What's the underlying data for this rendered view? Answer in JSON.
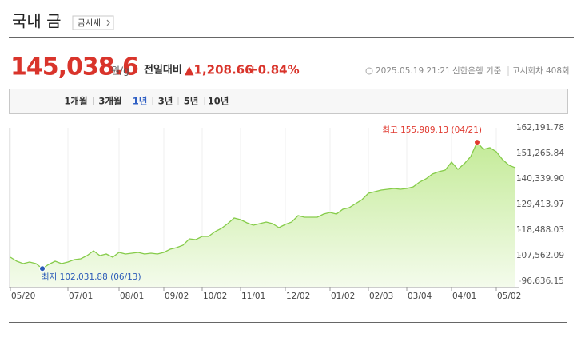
{
  "header": {
    "title": "국내 금",
    "button": "금시세"
  },
  "quote": {
    "price": "145,038.6",
    "unit": "원/g",
    "change_label": "전일대비",
    "change": "▲1,208.66",
    "change_pct": "+0.84%",
    "timestamp": "2025.05.19 21:21",
    "source": "신한은행 기준",
    "round": "고시회차 408회"
  },
  "tabs": [
    "1개월",
    "3개월",
    "1년",
    "3년",
    "5년",
    "10년"
  ],
  "selected_tab": "1년",
  "chart_data": {
    "type": "line",
    "categories": [
      "05/20",
      null,
      null,
      null,
      null,
      null,
      null,
      null,
      null,
      "07/01",
      null,
      null,
      null,
      null,
      null,
      null,
      null,
      "08/01",
      null,
      null,
      null,
      null,
      null,
      null,
      "09/02",
      null,
      null,
      null,
      null,
      null,
      "10/02",
      null,
      null,
      null,
      null,
      null,
      "11/01",
      null,
      null,
      null,
      null,
      null,
      null,
      "12/02",
      null,
      null,
      null,
      null,
      null,
      null,
      "01/02",
      null,
      null,
      null,
      null,
      null,
      "02/03",
      null,
      null,
      null,
      null,
      null,
      "03/04",
      null,
      null,
      null,
      null,
      null,
      null,
      "04/01",
      null,
      null,
      null,
      null,
      null,
      null,
      "05/02",
      null,
      null,
      null
    ],
    "series": [
      {
        "color": "#86cc4a",
        "values": [
          106880,
          105173,
          104148,
          104831,
          104148,
          102031.88,
          103807,
          105173,
          104148,
          104831,
          105855,
          106197,
          107563,
          109611,
          107563,
          108245,
          106880,
          108928,
          108245,
          108587,
          108928,
          108245,
          108587,
          108245,
          108928,
          110294,
          110977,
          112001,
          114733,
          114391,
          115757,
          115757,
          117806,
          119172,
          121220,
          123610,
          122927,
          121562,
          120537,
          121220,
          121903,
          121220,
          119513,
          120879,
          121903,
          124635,
          123952,
          123952,
          123952,
          125317,
          126000,
          125317,
          127366,
          128049,
          129756,
          131463,
          134195,
          134878,
          135561,
          135902,
          136244,
          135902,
          136244,
          136926,
          138975,
          140341,
          142389,
          143414,
          144097,
          147511,
          144438,
          146828,
          149901,
          155989.13,
          152974,
          153657,
          151950,
          148535,
          146145,
          145038.6
        ]
      }
    ],
    "max_label": "최고 155,989.13 (04/21)",
    "min_label": "최저 102,031.88 (06/13)",
    "max_color": "#e0392f",
    "min_color": "#2b5bb8",
    "ylim": [
      93904.67,
      162191.78
    ],
    "yticks": [
      {
        "value": 162191.78,
        "label": "162,191.78"
      },
      {
        "value": 151265.84,
        "label": "151,265.84"
      },
      {
        "value": 140339.9,
        "label": "140,339.90"
      },
      {
        "value": 129413.97,
        "label": "129,413.97"
      },
      {
        "value": 118488.03,
        "label": "118,488.03"
      },
      {
        "value": 107562.09,
        "label": "107,562.09"
      },
      {
        "value": 96636.15,
        "label": "96,636.15"
      }
    ],
    "grid": true
  }
}
